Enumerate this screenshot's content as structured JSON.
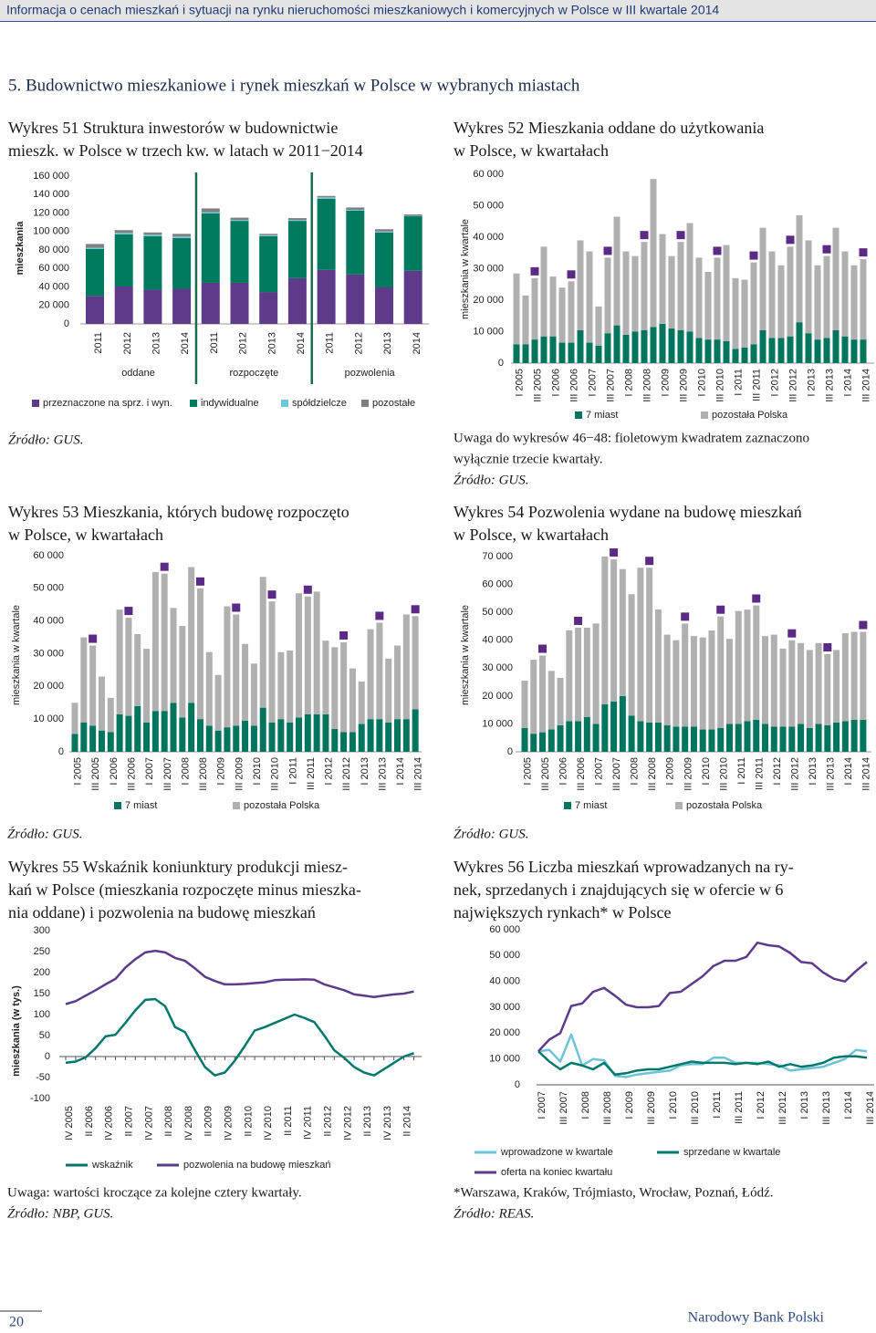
{
  "header": "Informacja o cenach mieszkań i sytuacji na rynku nieruchomości mieszkaniowych i komercyjnych w Polsce w III kwartale 2014",
  "section_title": "5. Budownictwo mieszkaniowe i rynek mieszkań w Polsce w wybranych miastach",
  "footer": {
    "page": "20",
    "publisher": "Narodowy Bank Polski"
  },
  "chart_data": [
    {
      "type": "bar",
      "stacked": true,
      "title": [
        "Wykres 51 Struktura inwestorów w budownictwie",
        "mieszk. w Polsce w trzech kw. w latach w 2011−2014"
      ],
      "y_label": "mieszkania",
      "categories": [
        "2011",
        "2012",
        "2013",
        "2014",
        "2011",
        "2012",
        "2013",
        "2014",
        "2011",
        "2012",
        "2013",
        "2014"
      ],
      "groups": [
        "oddane",
        "rozpoczęte",
        "pozwolenia"
      ],
      "series": [
        {
          "name": "przeznaczone na sprz. i wyn.",
          "color": "#5f3a8a",
          "values": [
            30000,
            40500,
            37000,
            38000,
            44500,
            44500,
            34500,
            49500,
            58500,
            53500,
            39500,
            57500
          ]
        },
        {
          "name": "indywidualne",
          "color": "#007a5e",
          "values": [
            51000,
            56500,
            58000,
            55000,
            75000,
            67000,
            60500,
            62000,
            77000,
            69000,
            59500,
            59000
          ]
        },
        {
          "name": "spółdzielcze",
          "color": "#6ec6d9",
          "values": [
            1500,
            1500,
            1500,
            1500,
            1500,
            1000,
            1000,
            1000,
            1500,
            1000,
            1000,
            500
          ]
        },
        {
          "name": "pozostałe",
          "color": "#808080",
          "values": [
            4000,
            3000,
            2500,
            3000,
            4000,
            2500,
            1500,
            2000,
            1500,
            2500,
            2500,
            1500
          ]
        }
      ],
      "ylim": [
        0,
        160000
      ],
      "yticks": [
        0,
        {
          "value": 20000,
          "label": "20 000"
        },
        {
          "value": 40000,
          "label": "40 000"
        },
        {
          "value": 60000,
          "label": "60 000"
        },
        {
          "value": 80000,
          "label": "80 000"
        },
        {
          "value": 100000,
          "label": "100 000"
        },
        {
          "value": 120000,
          "label": "120 000"
        },
        {
          "value": 140000,
          "label": "140 000"
        },
        {
          "value": 160000,
          "label": "160 000"
        }
      ],
      "grid": false,
      "legend": "bottom",
      "source": "Źródło: GUS."
    },
    {
      "type": "bar",
      "stacked": true,
      "title": [
        "Wykres 52 Mieszkania oddane do użytkowania",
        "w Polsce, w kwartałach"
      ],
      "y_label": "mieszkania w kwartale",
      "categories": [
        "I 2005",
        null,
        "III 2005",
        null,
        "I 2006",
        null,
        "III 2006",
        null,
        "I 2007",
        null,
        "III 2007",
        null,
        "I 2008",
        null,
        "III 2008",
        null,
        "I 2009",
        null,
        "III 2009",
        null,
        "I 2010",
        null,
        "III 2010",
        null,
        "I 2011",
        null,
        "III 2011",
        null,
        "I 2012",
        null,
        "III 2012",
        null,
        "I 2013",
        null,
        "III 2013",
        null,
        "I 2014",
        null,
        "III 2014"
      ],
      "series": [
        {
          "name": "7 miast",
          "color": "#00755e",
          "values": [
            6000,
            6000,
            7500,
            8500,
            8500,
            6500,
            6500,
            10500,
            6500,
            5500,
            9500,
            12000,
            9000,
            10000,
            10500,
            11500,
            12500,
            11000,
            10500,
            10000,
            8000,
            7500,
            7500,
            7000,
            4500,
            5000,
            6000,
            10500,
            8000,
            8000,
            8500,
            13000,
            9500,
            7500,
            8000,
            10500,
            8500,
            7500,
            7500
          ]
        },
        {
          "name": "pozostała Polska",
          "color": "#b0b0b0",
          "values": [
            22500,
            15500,
            19500,
            28500,
            19000,
            17500,
            19500,
            28500,
            29000,
            12500,
            24000,
            34500,
            26500,
            24000,
            28000,
            47000,
            28500,
            23000,
            28000,
            34500,
            25500,
            21500,
            26000,
            30500,
            22500,
            21500,
            26000,
            32500,
            27500,
            23000,
            28500,
            34000,
            29500,
            23500,
            26000,
            32500,
            27000,
            23500,
            25500
          ]
        }
      ],
      "highlight": {
        "color": "#5b2a86",
        "indices": [
          2,
          6,
          10,
          14,
          18,
          22,
          26,
          30,
          34,
          38
        ]
      },
      "ylim": [
        0,
        60000
      ],
      "yticks": [
        0,
        {
          "value": 10000,
          "label": "10 000"
        },
        {
          "value": 20000,
          "label": "20 000"
        },
        {
          "value": 30000,
          "label": "30 000"
        },
        {
          "value": 40000,
          "label": "40 000"
        },
        {
          "value": 50000,
          "label": "50 000"
        },
        {
          "value": 60000,
          "label": "60 000"
        }
      ],
      "grid": false,
      "legend": "bottom",
      "notes": [
        "Uwaga do wykresów 46−48: fioletowym kwadratem zaznaczono",
        "wyłącznie trzecie kwartały."
      ],
      "source": "Źródło: GUS."
    },
    {
      "type": "bar",
      "stacked": true,
      "title": [
        "Wykres 53 Mieszkania, których budowę rozpoczęto",
        "w Polsce, w kwartałach"
      ],
      "y_label": "mieszkania w kwartale",
      "categories": [
        "I 2005",
        null,
        "III 2005",
        null,
        "I 2006",
        null,
        "III 2006",
        null,
        "I 2007",
        null,
        "III 2007",
        null,
        "I 2008",
        null,
        "III 2008",
        null,
        "I 2009",
        null,
        "III 2009",
        null,
        "I 2010",
        null,
        "III 2010",
        null,
        "I 2011",
        null,
        "III 2011",
        null,
        "I 2012",
        null,
        "III 2012",
        null,
        "I 2013",
        null,
        "III 2013",
        null,
        "I 2014",
        null,
        "III 2014"
      ],
      "series": [
        {
          "name": "7 miast",
          "color": "#00755e",
          "values": [
            5500,
            9000,
            8000,
            6500,
            6000,
            11500,
            11000,
            14000,
            9000,
            12500,
            12500,
            15000,
            10500,
            15000,
            10000,
            8000,
            6500,
            7500,
            8000,
            9500,
            8000,
            13500,
            9000,
            10000,
            9000,
            10500,
            11500,
            11500,
            11500,
            7000,
            6000,
            6000,
            8500,
            10000,
            10000,
            9000,
            10000,
            10000,
            13000
          ]
        },
        {
          "name": "pozostała Polska",
          "color": "#b0b0b0",
          "values": [
            9500,
            26000,
            24500,
            16500,
            10500,
            32000,
            30000,
            22000,
            22500,
            42500,
            42000,
            29000,
            28000,
            41500,
            40000,
            22500,
            17000,
            37000,
            34000,
            23500,
            19000,
            40000,
            37000,
            20500,
            22000,
            38000,
            36000,
            37500,
            22500,
            25000,
            27500,
            19500,
            13000,
            27500,
            29500,
            19500,
            22500,
            32000,
            28500
          ]
        }
      ],
      "highlight": {
        "color": "#5b2a86",
        "indices": [
          2,
          6,
          10,
          14,
          18,
          22,
          26,
          30,
          34,
          38
        ]
      },
      "ylim": [
        0,
        60000
      ],
      "yticks": [
        0,
        {
          "value": 10000,
          "label": "10 000"
        },
        {
          "value": 20000,
          "label": "20 000"
        },
        {
          "value": 30000,
          "label": "30 000"
        },
        {
          "value": 40000,
          "label": "40 000"
        },
        {
          "value": 50000,
          "label": "50 000"
        },
        {
          "value": 60000,
          "label": "60 000"
        }
      ],
      "grid": false,
      "legend": "bottom",
      "source": "Źródło: GUS."
    },
    {
      "type": "bar",
      "stacked": true,
      "title": [
        "Wykres 54 Pozwolenia wydane na budowę mieszkań",
        "w Polsce, w kwartałach"
      ],
      "y_label": "mieszkania w kwartale",
      "categories": [
        "I 2005",
        null,
        "III 2005",
        null,
        "I 2006",
        null,
        "III 2006",
        null,
        "I 2007",
        null,
        "III 2007",
        null,
        "I 2008",
        null,
        "III 2008",
        null,
        "I 2009",
        null,
        "III 2009",
        null,
        "I 2010",
        null,
        "III 2010",
        null,
        "I 2011",
        null,
        "III 2011",
        null,
        "I 2012",
        null,
        "III 2012",
        null,
        "I 2013",
        null,
        "III 2013",
        null,
        "I 2014",
        null,
        "III 2014"
      ],
      "series": [
        {
          "name": "7 miast",
          "color": "#00755e",
          "values": [
            8500,
            6500,
            7000,
            8000,
            9500,
            11000,
            11000,
            12500,
            10000,
            17000,
            18000,
            20000,
            13000,
            11000,
            10500,
            10500,
            9500,
            9000,
            9000,
            9000,
            8000,
            8000,
            8500,
            10000,
            10000,
            11000,
            11500,
            10000,
            9000,
            9000,
            9000,
            10000,
            8500,
            10000,
            9500,
            10500,
            11000,
            11500,
            11500
          ]
        },
        {
          "name": "pozostała Polska",
          "color": "#b0b0b0",
          "values": [
            17000,
            26500,
            27500,
            21000,
            17000,
            32500,
            33500,
            32000,
            36000,
            53000,
            51000,
            45500,
            43500,
            55000,
            55500,
            40500,
            32500,
            31000,
            37000,
            32500,
            33000,
            35500,
            40000,
            30500,
            40500,
            40000,
            41000,
            31500,
            33000,
            28000,
            31000,
            29000,
            28000,
            29000,
            25500,
            26000,
            31500,
            31500,
            31500
          ]
        }
      ],
      "highlight": {
        "color": "#5b2a86",
        "indices": [
          2,
          6,
          10,
          14,
          18,
          22,
          26,
          30,
          34,
          38
        ]
      },
      "ylim": [
        0,
        70000
      ],
      "yticks": [
        0,
        {
          "value": 10000,
          "label": "10 000"
        },
        {
          "value": 20000,
          "label": "20 000"
        },
        {
          "value": 30000,
          "label": "30 000"
        },
        {
          "value": 40000,
          "label": "40 000"
        },
        {
          "value": 50000,
          "label": "50 000"
        },
        {
          "value": 60000,
          "label": "60 000"
        },
        {
          "value": 70000,
          "label": "70 000"
        }
      ],
      "grid": false,
      "legend": "bottom",
      "source": "Źródło: GUS."
    },
    {
      "type": "line",
      "title": [
        "Wykres 55 Wskaźnik koniunktury produkcji miesz-",
        "kań w Polsce (mieszkania rozpoczęte minus mieszka-",
        "nia oddane) i pozwolenia na budowę mieszkań"
      ],
      "y_label": "mieszkania (w tys.)",
      "categories": [
        "IV 2005",
        null,
        "II 2006",
        null,
        "IV 2006",
        null,
        "II 2007",
        null,
        "IV 2007",
        null,
        "II 2008",
        null,
        "IV 2008",
        null,
        "II 2009",
        null,
        "IV 2009",
        null,
        "II 2010",
        null,
        "IV 2010",
        null,
        "II 2011",
        null,
        "IV 2011",
        null,
        "II 2012",
        null,
        "IV 2012",
        null,
        "II 2013",
        null,
        "IV 2013",
        null,
        "II 2014",
        null
      ],
      "series": [
        {
          "name": "wskaźnik",
          "color": "#00796b",
          "values": [
            -15,
            -12,
            -2,
            20,
            48,
            52,
            80,
            110,
            135,
            137,
            120,
            70,
            58,
            15,
            -25,
            -45,
            -38,
            -10,
            25,
            62,
            70,
            80,
            90,
            100,
            92,
            82,
            50,
            15,
            -3,
            -25,
            -38,
            -45,
            -30,
            -15,
            0,
            8
          ]
        },
        {
          "name": "pozwolenia na budowę mieszkań",
          "color": "#5e3a8c",
          "values": [
            125,
            132,
            145,
            158,
            172,
            185,
            212,
            232,
            248,
            252,
            248,
            235,
            228,
            210,
            190,
            180,
            172,
            172,
            173,
            175,
            177,
            182,
            183,
            183,
            184,
            183,
            172,
            165,
            158,
            148,
            145,
            142,
            145,
            148,
            150,
            155
          ]
        }
      ],
      "ylim": [
        -100,
        300
      ],
      "yticks": [
        -100,
        -50,
        0,
        50,
        100,
        150,
        200,
        250,
        300
      ],
      "grid": false,
      "legend": "bottom",
      "notes": [
        "Uwaga: wartości kroczące za kolejne cztery kwartały."
      ],
      "source": "Źródło: NBP, GUS."
    },
    {
      "type": "line",
      "title": [
        "Wykres 56 Liczba mieszkań wprowadzanych na ry-",
        "nek, sprzedanych i znajdujących się w ofercie w 6",
        "największych rynkach* w Polsce"
      ],
      "categories": [
        "I 2007",
        null,
        "III 2007",
        null,
        "I 2008",
        null,
        "III 2008",
        null,
        "I 2009",
        null,
        "III 2009",
        null,
        "I 2010",
        null,
        "III 2010",
        null,
        "I 2011",
        null,
        "III 2011",
        null,
        "I 2012",
        null,
        "III 2012",
        null,
        "I 2013",
        null,
        "III 2013",
        null,
        "I 2014",
        null,
        "III 2014"
      ],
      "series": [
        {
          "name": "wprowadzone w kwartale",
          "color": "#6fc3d6",
          "values": [
            13000,
            13500,
            9000,
            19500,
            7500,
            10000,
            9500,
            3500,
            3000,
            4000,
            4500,
            5000,
            5500,
            7500,
            8000,
            8000,
            10500,
            10500,
            8500,
            8500,
            8500,
            8000,
            7500,
            5500,
            6000,
            6500,
            7000,
            8500,
            10000,
            13500,
            13000
          ]
        },
        {
          "name": "sprzedane w kwartale",
          "color": "#00796b",
          "values": [
            13000,
            9000,
            6000,
            8500,
            7500,
            6000,
            8500,
            4000,
            4500,
            5500,
            6000,
            6000,
            7000,
            8000,
            9000,
            8500,
            8500,
            8500,
            8000,
            8500,
            8000,
            9000,
            7000,
            8000,
            7000,
            7500,
            8500,
            10500,
            11000,
            11000,
            10500
          ]
        },
        {
          "name": "oferta na koniec kwartału",
          "color": "#5e3a8c",
          "values": [
            13000,
            17500,
            20000,
            30500,
            31500,
            36000,
            37500,
            34500,
            31000,
            30000,
            30000,
            30500,
            35500,
            36000,
            39000,
            42000,
            46000,
            48000,
            48000,
            49500,
            55000,
            54000,
            53500,
            51000,
            47500,
            47000,
            43500,
            41000,
            40000,
            44000,
            47500
          ]
        }
      ],
      "ylim": [
        0,
        60000
      ],
      "yticks": [
        0,
        {
          "value": 10000,
          "label": "10 000"
        },
        {
          "value": 20000,
          "label": "20 000"
        },
        {
          "value": 30000,
          "label": "30 000"
        },
        {
          "value": 40000,
          "label": "40 000"
        },
        {
          "value": 50000,
          "label": "50 000"
        },
        {
          "value": 60000,
          "label": "60 000"
        }
      ],
      "grid": false,
      "legend": "bottom",
      "notes": [
        "*Warszawa, Kraków, Trójmiasto, Wrocław, Poznań, Łódź."
      ],
      "source": "Źródło: REAS."
    }
  ]
}
